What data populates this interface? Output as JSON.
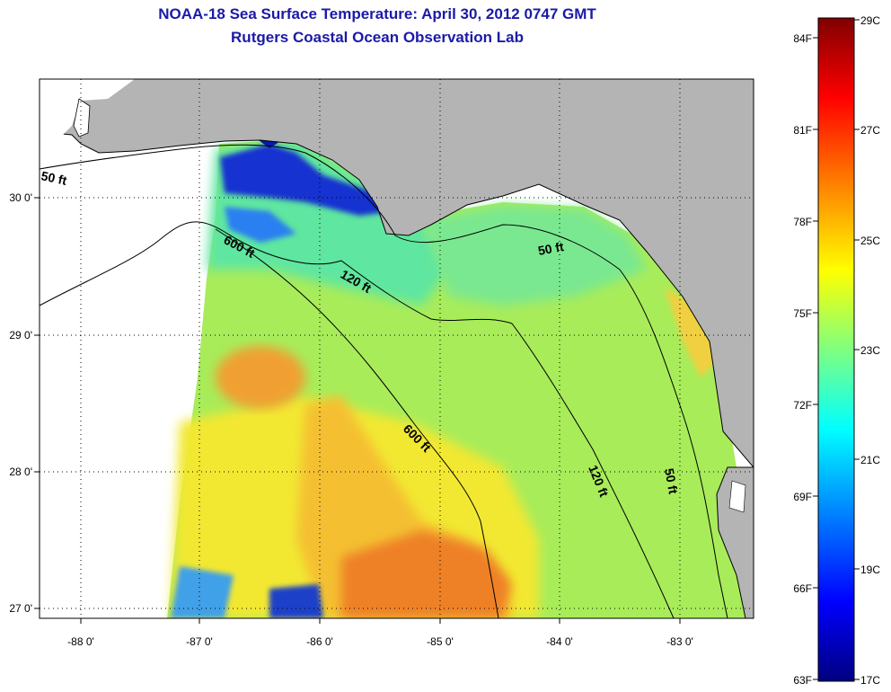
{
  "header": {
    "title_line1": "NOAA-18 Sea Surface Temperature:  April 30, 2012 0747 GMT",
    "title_line2": "Rutgers Coastal Ocean Observation Lab"
  },
  "map": {
    "lon_ticks": [
      "-88 0'",
      "-87 0'",
      "-86 0'",
      "-85 0'",
      "-84 0'",
      "-83 0'"
    ],
    "lat_ticks": [
      "30 0'",
      "29 0'",
      "28 0'",
      "27 0'"
    ],
    "contour_labels": [
      "50 ft",
      "600 ft",
      "120 ft",
      "50 ft",
      "600 ft",
      "120 ft",
      "50 ft"
    ],
    "colors": {
      "land": "#b4b4b4",
      "coastline": "#000000",
      "no_data": "#ffffff"
    }
  },
  "colorbar": {
    "fahrenheit_labels": [
      "84F",
      "81F",
      "78F",
      "75F",
      "72F",
      "69F",
      "66F",
      "63F"
    ],
    "celsius_labels": [
      "29C",
      "27C",
      "25C",
      "23C",
      "21C",
      "19C",
      "17C"
    ],
    "colormap": [
      "#000080",
      "#0000ff",
      "#00ffff",
      "#ffff00",
      "#ff0000",
      "#800000"
    ]
  }
}
